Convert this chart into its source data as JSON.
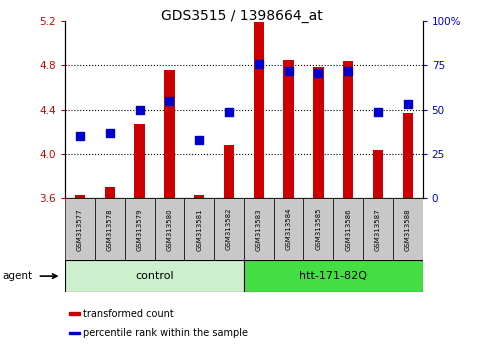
{
  "title": "GDS3515 / 1398664_at",
  "samples": [
    "GSM313577",
    "GSM313578",
    "GSM313579",
    "GSM313580",
    "GSM313581",
    "GSM313582",
    "GSM313583",
    "GSM313584",
    "GSM313585",
    "GSM313586",
    "GSM313587",
    "GSM313588"
  ],
  "red_values": [
    3.63,
    3.7,
    4.27,
    4.76,
    3.63,
    4.08,
    5.19,
    4.85,
    4.79,
    4.84,
    4.04,
    4.37
  ],
  "blue_percentiles": [
    35,
    37,
    50,
    55,
    33,
    49,
    76,
    72,
    71,
    72,
    49,
    53
  ],
  "ylim_left": [
    3.6,
    5.2
  ],
  "ylim_right": [
    0,
    100
  ],
  "yticks_left": [
    3.6,
    4.0,
    4.4,
    4.8,
    5.2
  ],
  "yticks_right": [
    0,
    25,
    50,
    75,
    100
  ],
  "ytick_labels_right": [
    "0",
    "25",
    "50",
    "75",
    "100%"
  ],
  "bar_color": "#cc0000",
  "dot_color": "#0000cc",
  "bar_bottom": 3.6,
  "groups": [
    {
      "label": "control",
      "start": 0,
      "end": 6,
      "color": "#ccf0cc"
    },
    {
      "label": "htt-171-82Q",
      "start": 6,
      "end": 12,
      "color": "#44dd44"
    }
  ],
  "agent_label": "agent",
  "legend_items": [
    {
      "color": "#cc0000",
      "label": "transformed count"
    },
    {
      "color": "#0000cc",
      "label": "percentile rank within the sample"
    }
  ],
  "bar_width": 0.35,
  "dot_size": 28,
  "tick_label_color_left": "#cc0000",
  "tick_label_color_right": "#0000cc",
  "grid_dotted": [
    4.0,
    4.4,
    4.8
  ]
}
